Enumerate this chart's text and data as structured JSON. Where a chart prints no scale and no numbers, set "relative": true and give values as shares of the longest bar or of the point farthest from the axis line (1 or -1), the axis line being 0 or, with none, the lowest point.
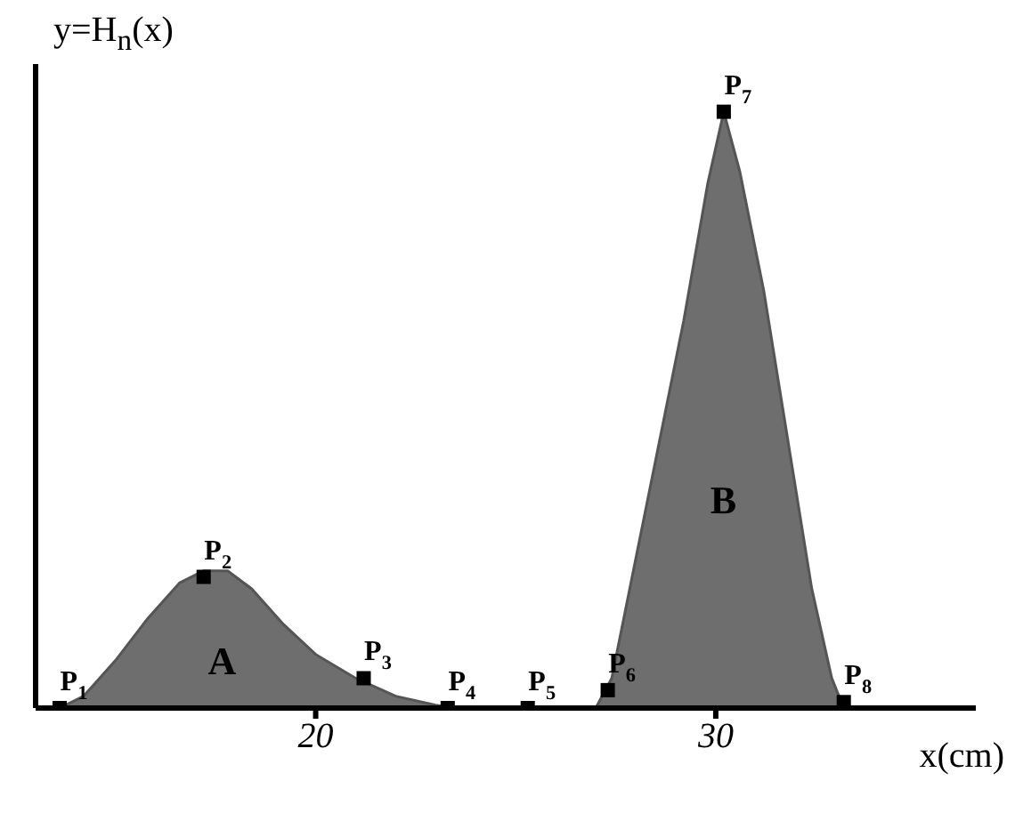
{
  "chart_data": {
    "type": "area",
    "xlabel": "x(cm)",
    "ylabel": "y=H$_{n}$(x)",
    "relative": true,
    "xlim": [
      13,
      36.5
    ],
    "xticks": [
      20,
      30
    ],
    "grid": false,
    "legend": false,
    "series": [
      {
        "color": "#555555",
        "x": [
          13.6,
          14.2,
          15.0,
          15.8,
          16.6,
          17.2,
          17.8,
          18.4,
          19.2,
          20.0,
          21.0,
          22.0,
          23.0,
          23.5,
          27.0,
          27.4,
          28.0,
          28.6,
          29.2,
          29.8,
          30.2,
          30.6,
          31.2,
          31.8,
          32.4,
          32.9,
          33.2,
          36.0
        ],
        "values": [
          0,
          0.02,
          0.08,
          0.15,
          0.21,
          0.23,
          0.23,
          0.2,
          0.14,
          0.09,
          0.05,
          0.02,
          0.005,
          0,
          0,
          0.05,
          0.25,
          0.45,
          0.65,
          0.88,
          1.0,
          0.9,
          0.7,
          0.45,
          0.2,
          0.05,
          0,
          0
        ]
      },
      {
        "type": "scatter",
        "color": "#000000",
        "marker": "square",
        "x": [
          13.6,
          17.2,
          21.2,
          23.3,
          25.3,
          27.3,
          30.2,
          33.2
        ],
        "values": [
          0,
          0.22,
          0.05,
          0,
          0,
          0.03,
          1.0,
          0.01
        ]
      }
    ],
    "annotations": [
      {
        "text": "P$_{1}$",
        "x": 13.6,
        "y": 0
      },
      {
        "text": "P$_{2}$",
        "x": 17.2,
        "y": 0.22
      },
      {
        "text": "P$_{3}$",
        "x": 21.2,
        "y": 0.05
      },
      {
        "text": "P$_{4}$",
        "x": 23.3,
        "y": 0
      },
      {
        "text": "P$_{5}$",
        "x": 25.3,
        "y": 0
      },
      {
        "text": "P$_{6}$",
        "x": 27.3,
        "y": 0.03
      },
      {
        "text": "P$_{7}$",
        "x": 30.2,
        "y": 1.0
      },
      {
        "text": "P$_{8}$",
        "x": 33.2,
        "y": 0.01
      },
      "A",
      "B"
    ]
  }
}
